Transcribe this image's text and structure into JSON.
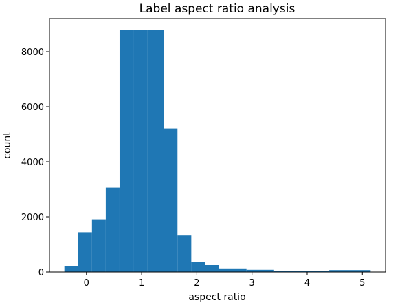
{
  "chart_data": {
    "type": "bar",
    "title": "Label aspect ratio analysis",
    "xlabel": "aspect ratio",
    "ylabel": "count",
    "xlim": [
      -0.67,
      5.42
    ],
    "ylim": [
      0,
      9200
    ],
    "xticks": [
      0,
      1,
      2,
      3,
      4,
      5
    ],
    "xtick_labels": [
      "0",
      "1",
      "2",
      "3",
      "4",
      "5"
    ],
    "yticks": [
      0,
      2000,
      4000,
      6000,
      8000
    ],
    "ytick_labels": [
      "0",
      "2000",
      "4000",
      "6000",
      "8000"
    ],
    "grid": false,
    "legend": "none",
    "bar_color": "#1f77b4",
    "bins": [
      {
        "x0": -0.4,
        "x1": -0.15,
        "count": 200
      },
      {
        "x0": -0.15,
        "x1": 0.1,
        "count": 1440
      },
      {
        "x0": 0.1,
        "x1": 0.35,
        "count": 1910
      },
      {
        "x0": 0.35,
        "x1": 0.6,
        "count": 3060
      },
      {
        "x0": 0.6,
        "x1": 0.85,
        "count": 8780
      },
      {
        "x0": 0.85,
        "x1": 1.1,
        "count": 8780
      },
      {
        "x0": 1.1,
        "x1": 1.4,
        "count": 8780
      },
      {
        "x0": 1.4,
        "x1": 1.65,
        "count": 5210
      },
      {
        "x0": 1.65,
        "x1": 1.9,
        "count": 1320
      },
      {
        "x0": 1.9,
        "x1": 2.15,
        "count": 350
      },
      {
        "x0": 2.15,
        "x1": 2.4,
        "count": 250
      },
      {
        "x0": 2.4,
        "x1": 2.9,
        "count": 130
      },
      {
        "x0": 2.9,
        "x1": 3.4,
        "count": 80
      },
      {
        "x0": 3.4,
        "x1": 4.4,
        "count": 50
      },
      {
        "x0": 4.4,
        "x1": 5.15,
        "count": 70
      }
    ]
  }
}
